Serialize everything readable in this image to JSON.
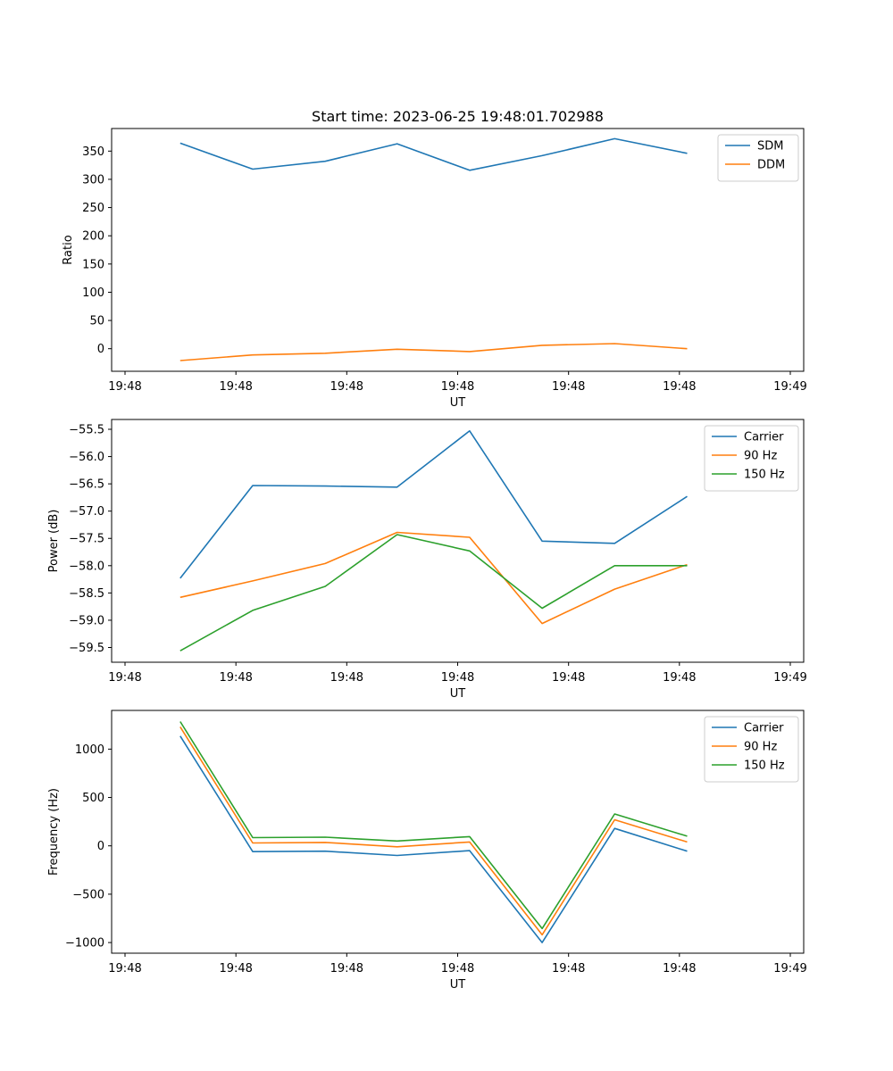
{
  "figure": {
    "title": "Start time: 2023-06-25 19:48:01.702988"
  },
  "chart_data": [
    {
      "type": "line",
      "ylabel": "Ratio",
      "xlabel": "UT",
      "xlim": [
        0,
        1
      ],
      "ylim": [
        -40,
        390
      ],
      "x_ticks": [
        0.0,
        0.1667,
        0.3333,
        0.5,
        0.6667,
        0.8333,
        1.0
      ],
      "x_tick_labels": [
        "19:48",
        "19:48",
        "19:48",
        "19:48",
        "19:48",
        "19:48",
        "19:49"
      ],
      "y_ticks": [
        0,
        50,
        100,
        150,
        200,
        250,
        300,
        350
      ],
      "y_tick_labels": [
        "0",
        "50",
        "100",
        "150",
        "200",
        "250",
        "300",
        "350"
      ],
      "x": [
        0.083,
        0.192,
        0.301,
        0.409,
        0.518,
        0.627,
        0.736,
        0.845
      ],
      "series": [
        {
          "name": "SDM",
          "color": "#1f77b4",
          "values": [
            364,
            318,
            332,
            363,
            316,
            342,
            372,
            346
          ]
        },
        {
          "name": "DDM",
          "color": "#ff7f0e",
          "values": [
            -21,
            -11,
            -8,
            -1,
            -5,
            6,
            9,
            0
          ]
        }
      ],
      "legend": "top-right",
      "grid": false
    },
    {
      "type": "line",
      "ylabel": "Power (dB)",
      "xlabel": "UT",
      "xlim": [
        0,
        1
      ],
      "ylim": [
        -59.77,
        -55.32
      ],
      "x_ticks": [
        0.0,
        0.1667,
        0.3333,
        0.5,
        0.6667,
        0.8333,
        1.0
      ],
      "x_tick_labels": [
        "19:48",
        "19:48",
        "19:48",
        "19:48",
        "19:48",
        "19:48",
        "19:49"
      ],
      "y_ticks": [
        -59.5,
        -59.0,
        -58.5,
        -58.0,
        -57.5,
        -57.0,
        -56.5,
        -56.0,
        -55.5
      ],
      "y_tick_labels": [
        "−59.5",
        "−59.0",
        "−58.5",
        "−58.0",
        "−57.5",
        "−57.0",
        "−56.5",
        "−56.0",
        "−55.5"
      ],
      "x": [
        0.083,
        0.192,
        0.301,
        0.409,
        0.518,
        0.627,
        0.736,
        0.845
      ],
      "series": [
        {
          "name": "Carrier",
          "color": "#1f77b4",
          "values": [
            -58.23,
            -56.53,
            -56.54,
            -56.56,
            -55.53,
            -57.55,
            -57.59,
            -56.73
          ]
        },
        {
          "name": "90 Hz",
          "color": "#ff7f0e",
          "values": [
            -58.58,
            -58.28,
            -57.96,
            -57.39,
            -57.48,
            -59.06,
            -58.43,
            -57.98
          ]
        },
        {
          "name": "150 Hz",
          "color": "#2ca02c",
          "values": [
            -59.56,
            -58.82,
            -58.38,
            -57.43,
            -57.73,
            -58.78,
            -58.0,
            -58.0
          ]
        }
      ],
      "legend": "top-right",
      "grid": false
    },
    {
      "type": "line",
      "ylabel": "Frequency (Hz)",
      "xlabel": "UT",
      "xlim": [
        0,
        1
      ],
      "ylim": [
        -1110,
        1400
      ],
      "x_ticks": [
        0.0,
        0.1667,
        0.3333,
        0.5,
        0.6667,
        0.8333,
        1.0
      ],
      "x_tick_labels": [
        "19:48",
        "19:48",
        "19:48",
        "19:48",
        "19:48",
        "19:48",
        "19:49"
      ],
      "y_ticks": [
        -1000,
        -500,
        0,
        500,
        1000
      ],
      "y_tick_labels": [
        "−1000",
        "−500",
        "0",
        "500",
        "1000"
      ],
      "x": [
        0.083,
        0.192,
        0.301,
        0.409,
        0.518,
        0.627,
        0.736,
        0.845
      ],
      "series": [
        {
          "name": "Carrier",
          "color": "#1f77b4",
          "values": [
            1135,
            -60,
            -55,
            -100,
            -50,
            -1000,
            180,
            -55
          ]
        },
        {
          "name": "90 Hz",
          "color": "#ff7f0e",
          "values": [
            1230,
            30,
            35,
            -10,
            40,
            -920,
            270,
            40
          ]
        },
        {
          "name": "150 Hz",
          "color": "#2ca02c",
          "values": [
            1285,
            85,
            90,
            50,
            95,
            -855,
            330,
            100
          ]
        }
      ],
      "legend": "top-right",
      "grid": false
    }
  ]
}
